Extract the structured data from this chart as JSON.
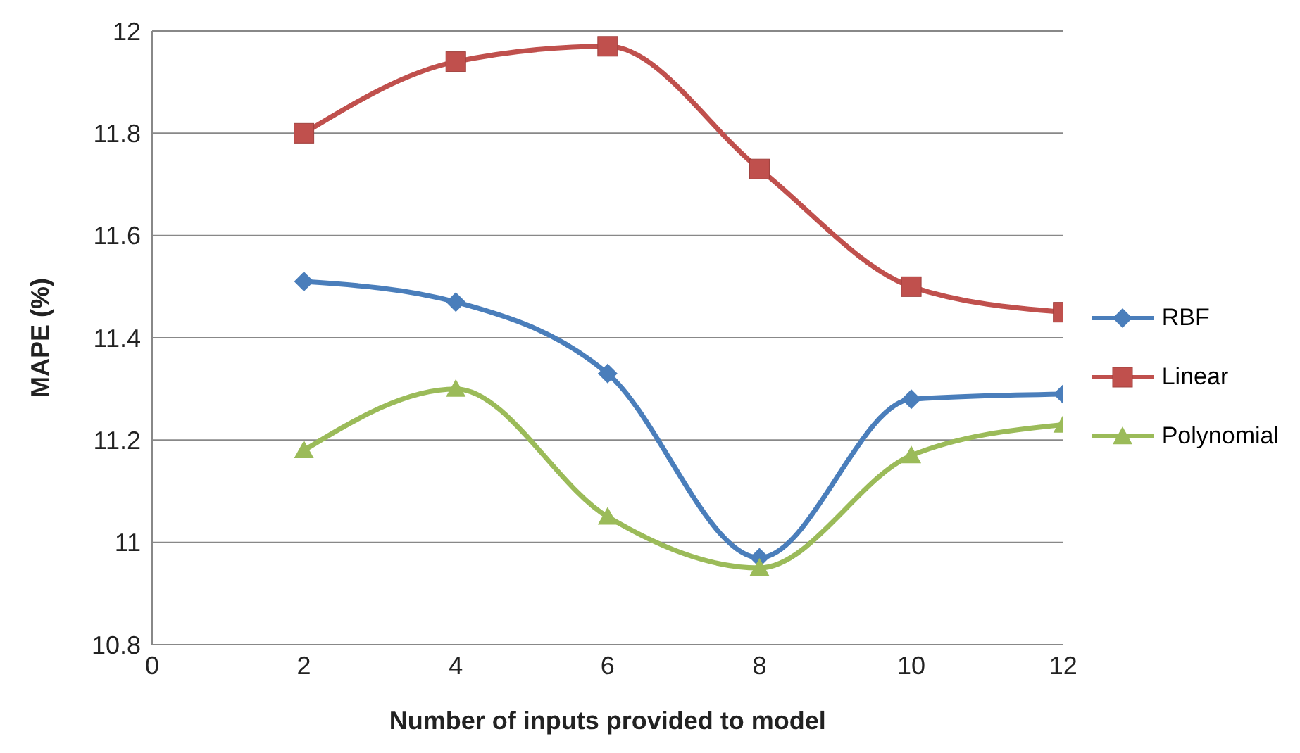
{
  "chart_data": {
    "type": "line",
    "xlabel": "Number of inputs provided to model",
    "ylabel": "MAPE (%)",
    "x": [
      2,
      4,
      6,
      8,
      10,
      12
    ],
    "xlim": [
      0,
      12
    ],
    "xticks": [
      0,
      2,
      4,
      6,
      8,
      10,
      12
    ],
    "ylim": [
      10.8,
      12
    ],
    "yticks": [
      10.8,
      11,
      11.2,
      11.4,
      11.6,
      11.8,
      12
    ],
    "grid": "y",
    "legend": "right",
    "series": [
      {
        "name": "RBF",
        "color": "#4a7ebb",
        "marker": "diamond",
        "values": [
          11.51,
          11.47,
          11.33,
          10.97,
          11.28,
          11.29
        ]
      },
      {
        "name": "Linear",
        "color": "#c0504d",
        "marker": "square",
        "values": [
          11.8,
          11.94,
          11.97,
          11.73,
          11.5,
          11.45
        ]
      },
      {
        "name": "Polynomial",
        "color": "#9bbb59",
        "marker": "triangle",
        "values": [
          11.18,
          11.3,
          11.05,
          10.95,
          11.17,
          11.23
        ]
      }
    ]
  }
}
